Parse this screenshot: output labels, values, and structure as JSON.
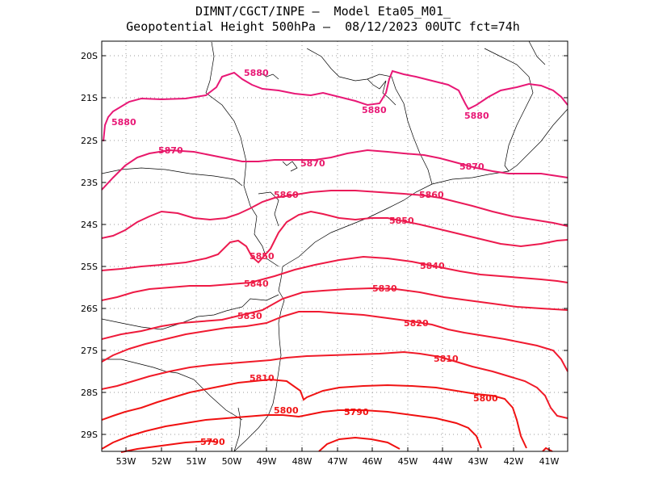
{
  "header": {
    "line1": "DIMNT/CGCT/INPE –  Model Eta05_M01_",
    "line2": "Geopotential Height 500hPa –  08/12/2023 00UTC fct=74h"
  },
  "axes": {
    "lat_labels": [
      "20S",
      "21S",
      "22S",
      "23S",
      "24S",
      "25S",
      "26S",
      "27S",
      "28S",
      "29S"
    ],
    "lon_labels": [
      "53W",
      "52W",
      "51W",
      "50W",
      "49W",
      "48W",
      "47W",
      "46W",
      "45W",
      "44W",
      "43W",
      "42W",
      "41W"
    ]
  },
  "colors": {
    "c5790": "#f01010",
    "c5800": "#f01414",
    "c5810": "#f01a28",
    "c5820": "#f01a30",
    "c5830": "#ee1a3a",
    "c5840": "#ee1a44",
    "c5850": "#ec1a4e",
    "c5860": "#ea1a58",
    "c5870": "#e8186a",
    "c5880": "#e81876",
    "grid": "#999999",
    "coast": "#000000"
  },
  "contours": [
    {
      "value": "5880",
      "labels": [
        "5880",
        "5880",
        "5880",
        "5880"
      ]
    },
    {
      "value": "5870",
      "labels": [
        "5870",
        "5870",
        "5870"
      ]
    },
    {
      "value": "5860",
      "labels": [
        "5860",
        "5860"
      ]
    },
    {
      "value": "5850",
      "labels": [
        "5850",
        "5850"
      ]
    },
    {
      "value": "5840",
      "labels": [
        "5840",
        "5840"
      ]
    },
    {
      "value": "5830",
      "labels": [
        "5830",
        "5830"
      ]
    },
    {
      "value": "5820",
      "labels": [
        "5820"
      ]
    },
    {
      "value": "5810",
      "labels": [
        "5810",
        "5810"
      ]
    },
    {
      "value": "5800",
      "labels": [
        "5800",
        "5800"
      ]
    },
    {
      "value": "5790",
      "labels": [
        "5790",
        "5790"
      ]
    }
  ]
}
